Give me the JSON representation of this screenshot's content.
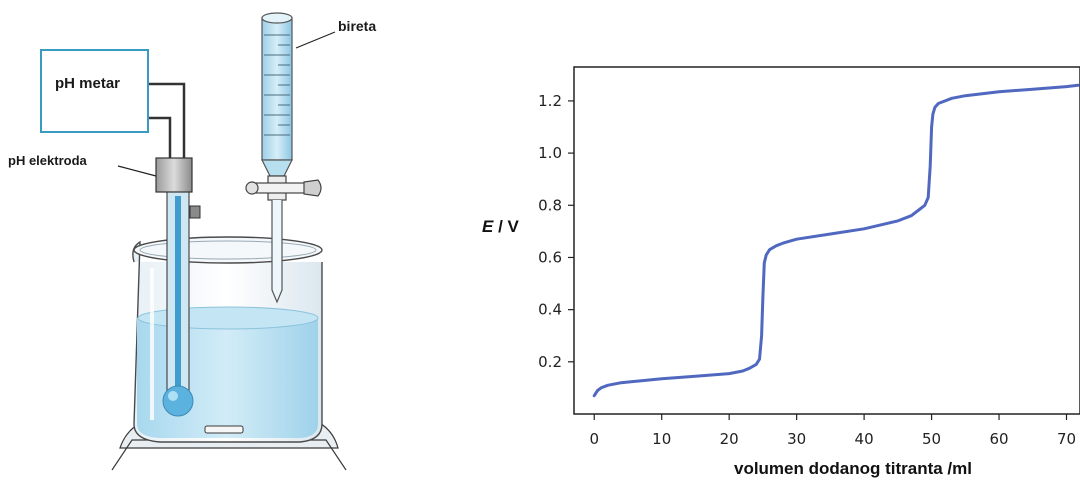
{
  "apparatus": {
    "ph_meter_label": "pH metar",
    "electrode_label": "pH elektroda",
    "burette_label": "bireta"
  },
  "chart_data": {
    "type": "line",
    "title": "",
    "xlabel": "volumen dodanog titranta /ml",
    "ylabel_symbol": "E",
    "ylabel_unit": " / V",
    "xlim": [
      -3,
      72
    ],
    "ylim": [
      0.0,
      1.33
    ],
    "xticks": [
      0,
      10,
      20,
      30,
      40,
      50,
      60,
      70
    ],
    "yticks": [
      0.2,
      0.4,
      0.6,
      0.8,
      1.0,
      1.2
    ],
    "ytick_labels": [
      "0.2",
      "0.4",
      "0.6",
      "0.8",
      "1.0",
      "1.2"
    ],
    "grid": false,
    "series": [
      {
        "color": "#5068c0",
        "x": [
          0,
          0.5,
          1,
          2,
          4,
          6,
          10,
          15,
          20,
          22,
          23,
          24,
          24.5,
          24.8,
          25,
          25.2,
          25.5,
          26,
          27,
          28,
          30,
          35,
          40,
          45,
          47,
          48,
          49,
          49.5,
          49.8,
          50,
          50.2,
          50.5,
          51,
          52,
          53,
          55,
          60,
          65,
          70,
          72
        ],
        "y": [
          0.07,
          0.09,
          0.1,
          0.11,
          0.12,
          0.125,
          0.135,
          0.145,
          0.155,
          0.165,
          0.175,
          0.19,
          0.21,
          0.3,
          0.45,
          0.58,
          0.61,
          0.63,
          0.645,
          0.655,
          0.67,
          0.69,
          0.71,
          0.74,
          0.76,
          0.78,
          0.8,
          0.83,
          0.95,
          1.1,
          1.15,
          1.175,
          1.19,
          1.2,
          1.21,
          1.22,
          1.235,
          1.245,
          1.255,
          1.26
        ]
      }
    ]
  }
}
